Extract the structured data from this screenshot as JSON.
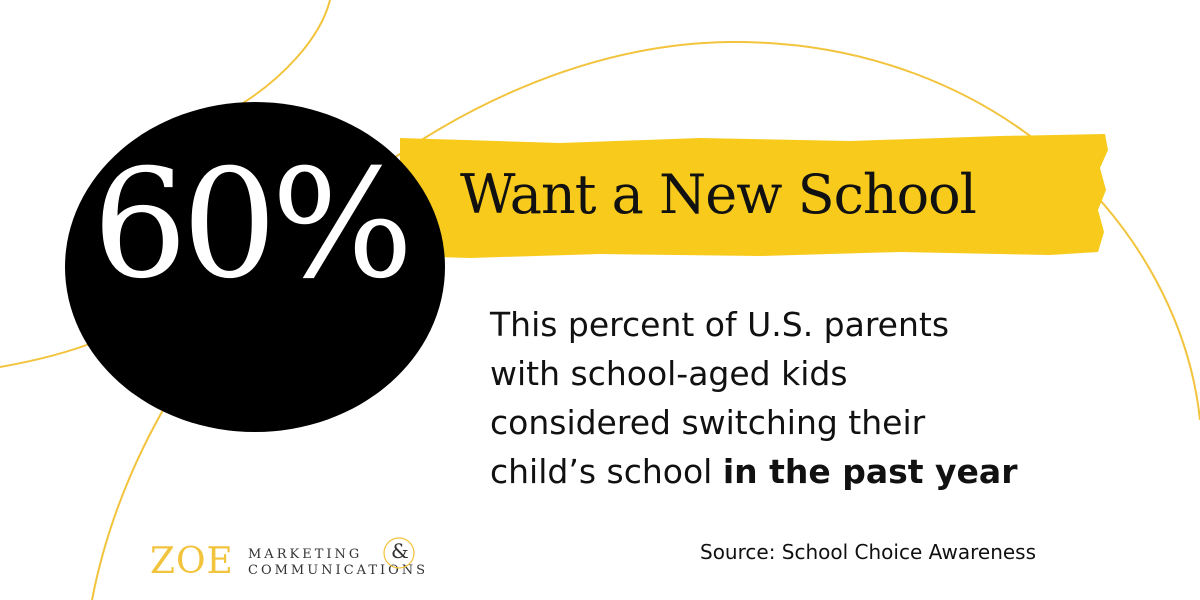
{
  "infographic": {
    "stat_value": "60%",
    "headline": "Want a New School",
    "body_lines": [
      "This percent of U.S. parents",
      "with school-aged kids",
      "considered switching their",
      "child’s school "
    ],
    "body_emphasis": "in the past year",
    "source": "Source: School Choice Awareness"
  },
  "logo": {
    "main": "ZOE",
    "line1": "MARKETING",
    "line2": "COMMUNICATIONS",
    "ampersand": "&"
  },
  "colors": {
    "accent_yellow": "#f7ca1c",
    "circle_black": "#000000",
    "logo_gold": "#f2c33c",
    "text": "#111111"
  }
}
